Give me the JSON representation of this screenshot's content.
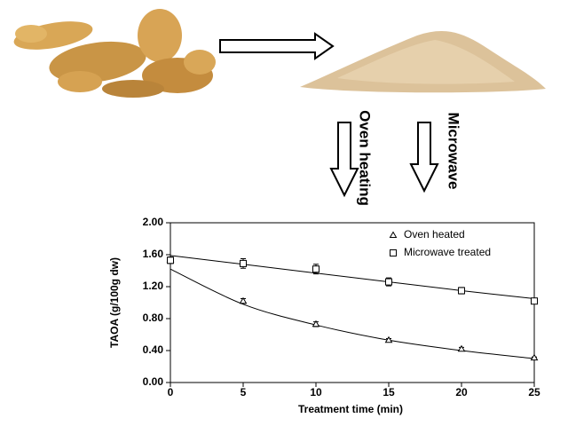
{
  "process": {
    "oven_label": "Oven heating",
    "microwave_label": "Microwave"
  },
  "chart_data": {
    "type": "scatter",
    "x_label": "Treatment time (min)",
    "y_label": "TAOA (g/100g dw)",
    "x": [
      0,
      5,
      10,
      15,
      20,
      25
    ],
    "series": [
      {
        "name": "Oven heated",
        "marker": "triangle",
        "color": "#000000",
        "values": [
          1.54,
          1.02,
          0.73,
          0.53,
          0.42,
          0.31
        ],
        "errors": [
          0.03,
          0.03,
          0.03,
          0.02,
          0.02,
          0.01
        ],
        "fit_values": [
          1.42,
          0.98,
          0.72,
          0.53,
          0.4,
          0.3
        ]
      },
      {
        "name": "Microwave treated",
        "marker": "square",
        "color": "#000000",
        "values": [
          1.53,
          1.49,
          1.42,
          1.26,
          1.15,
          1.02
        ],
        "errors": [
          0.04,
          0.06,
          0.06,
          0.05,
          0.04,
          0.02
        ],
        "fit_values": [
          1.59,
          1.48,
          1.37,
          1.26,
          1.15,
          1.05
        ]
      }
    ],
    "xlim": [
      0,
      25
    ],
    "xticks": [
      0,
      5,
      10,
      15,
      20,
      25
    ],
    "ylim": [
      0,
      2
    ],
    "yticks": [
      {
        "value": 0,
        "label": "0.00"
      },
      {
        "value": 0.4,
        "label": "0.40"
      },
      {
        "value": 0.8,
        "label": "0.80"
      },
      {
        "value": 1.2,
        "label": "1.20"
      },
      {
        "value": 1.6,
        "label": "1.60"
      },
      {
        "value": 2,
        "label": "2.00"
      }
    ],
    "grid": false
  }
}
